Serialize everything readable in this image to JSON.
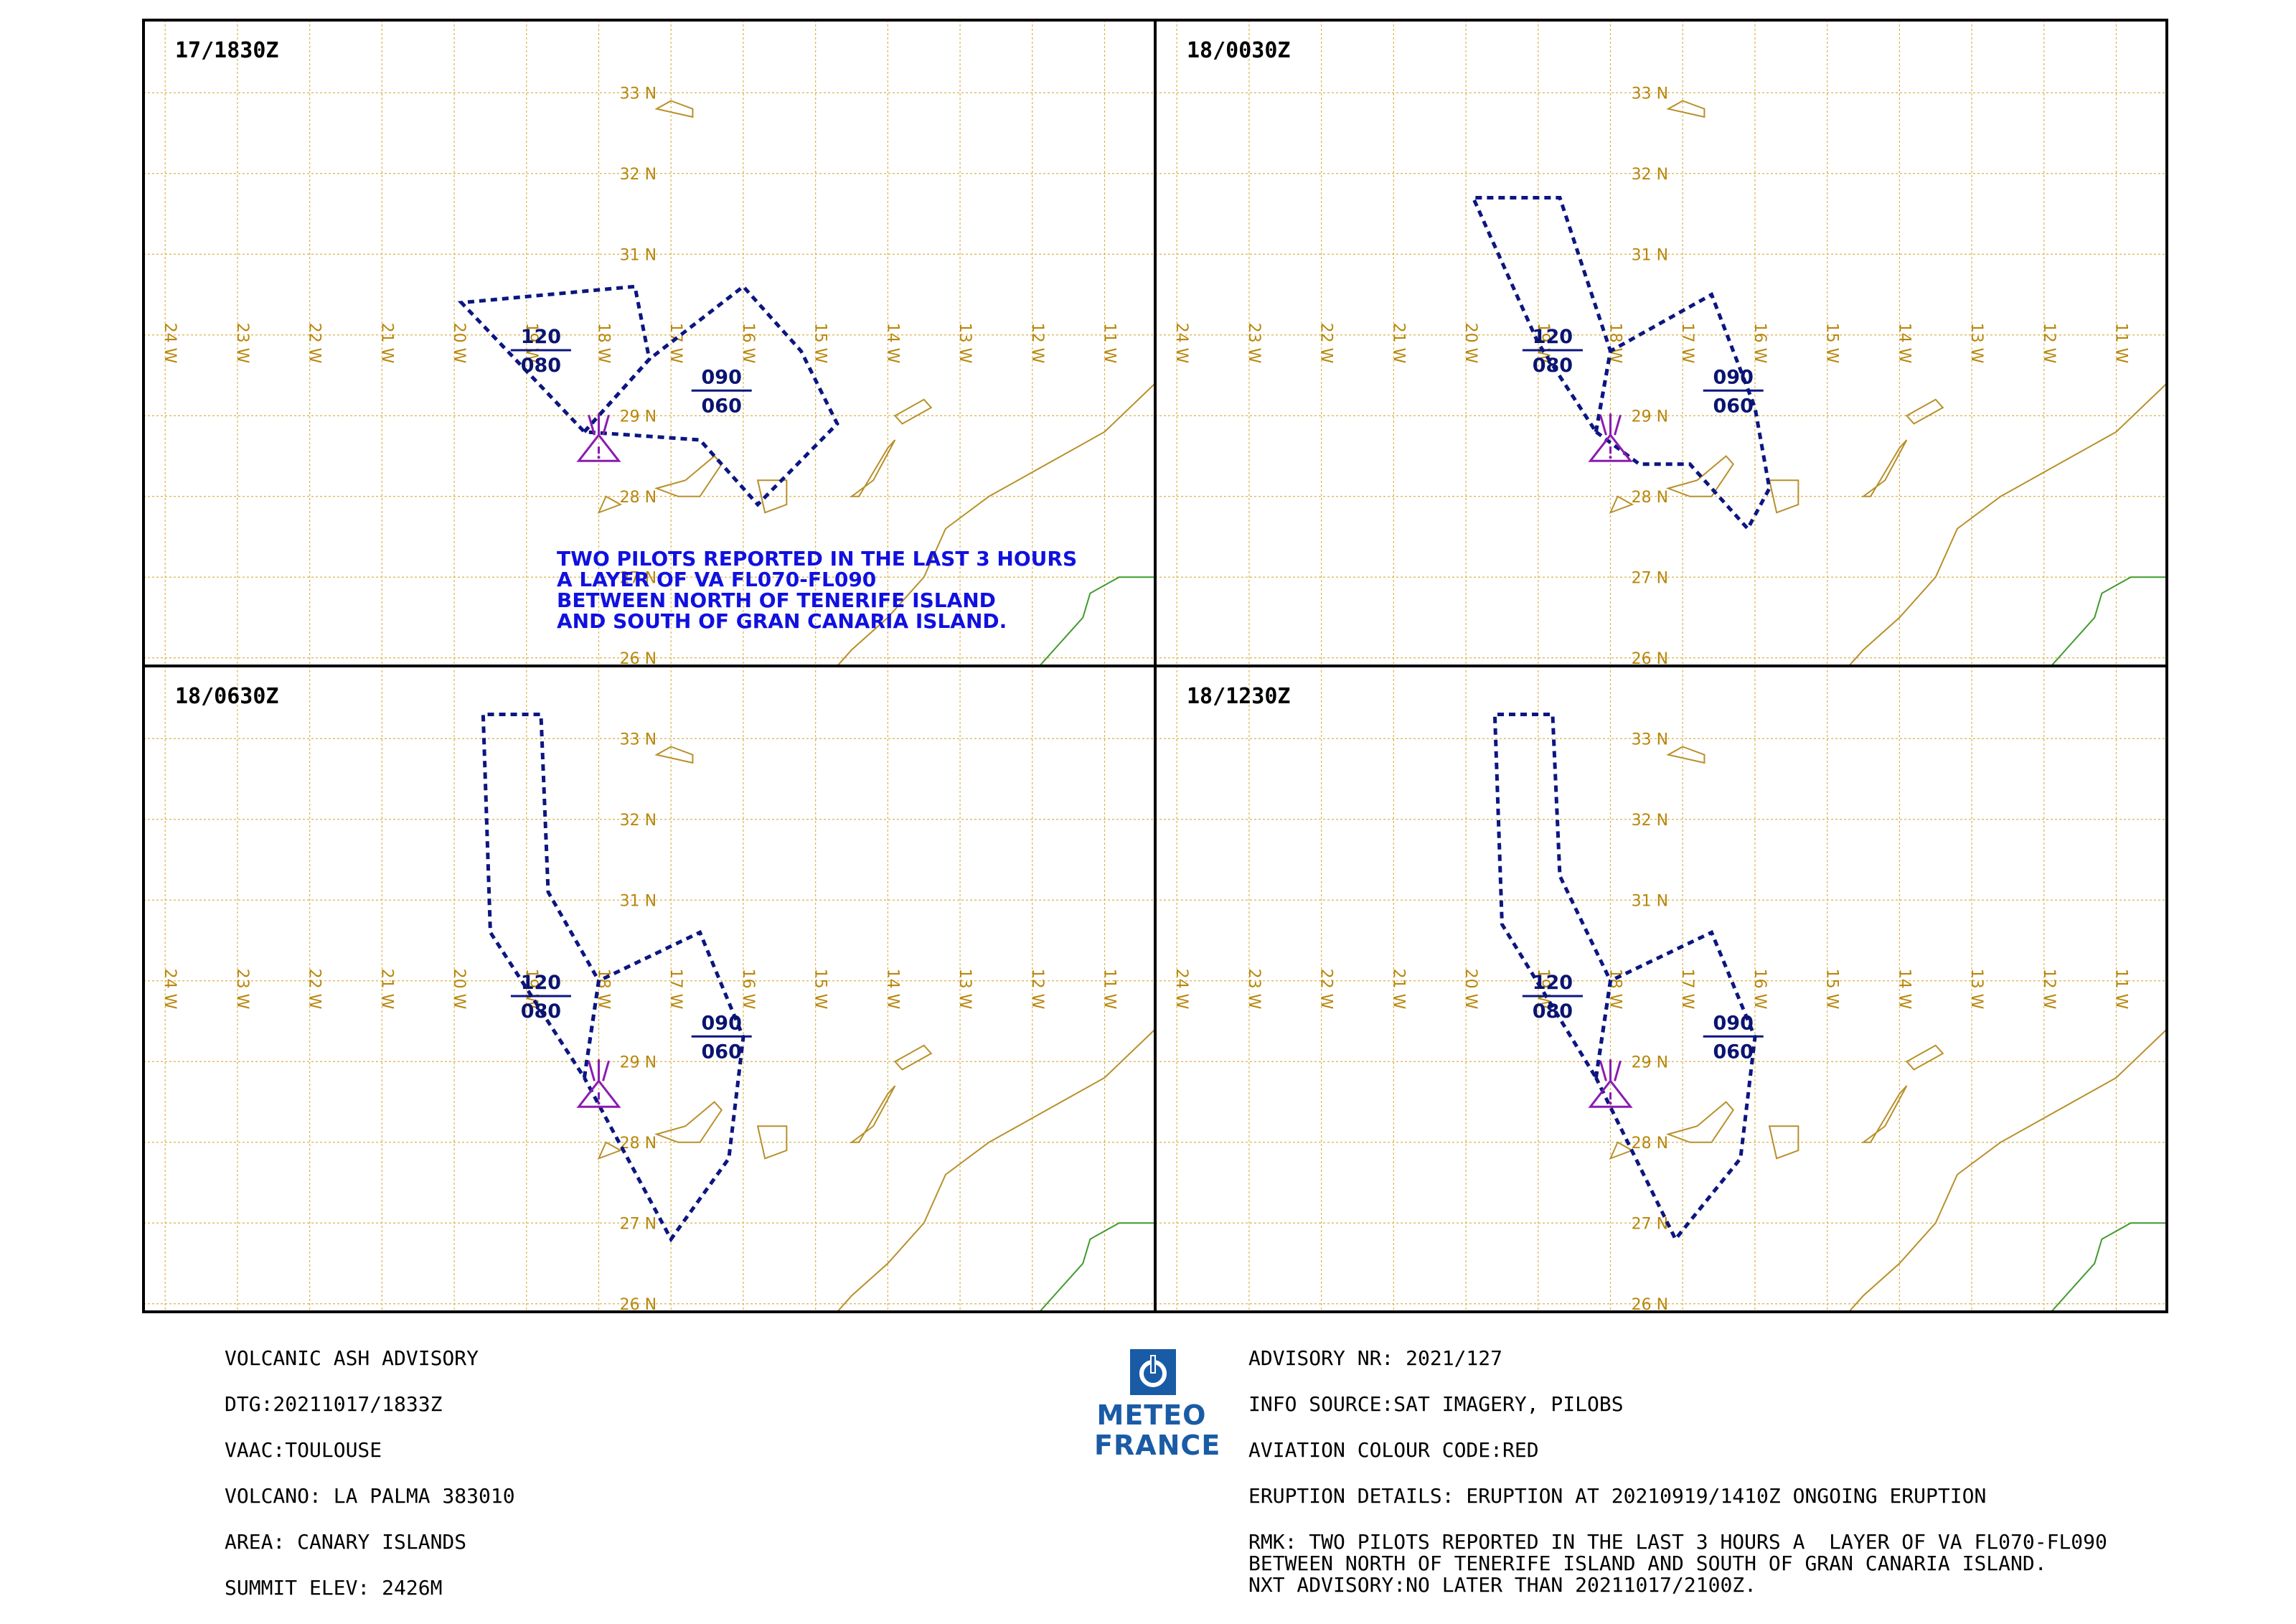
{
  "panels": [
    {
      "time": "17/1830Z",
      "remark": [
        "TWO PILOTS REPORTED IN THE LAST 3 HOURS",
        "A  LAYER OF VA FL070-FL090",
        " BETWEEN NORTH OF TENERIFE ISLAND",
        "AND SOUTH OF GRAN CANARIA ISLAND."
      ],
      "layers": [
        {
          "top": "120",
          "bottom": "080",
          "polygon": [
            [
              -18.2,
              28.8
            ],
            [
              -17.3,
              29.7
            ],
            [
              -17.5,
              30.6
            ],
            [
              -19.9,
              30.4
            ],
            [
              -18.2,
              28.8
            ]
          ]
        },
        {
          "top": "090",
          "bottom": "060",
          "polygon": [
            [
              -18.2,
              28.8
            ],
            [
              -17.3,
              29.7
            ],
            [
              -16.0,
              30.6
            ],
            [
              -15.2,
              29.8
            ],
            [
              -14.7,
              28.9
            ],
            [
              -15.8,
              27.9
            ],
            [
              -16.6,
              28.7
            ],
            [
              -18.2,
              28.8
            ]
          ]
        }
      ]
    },
    {
      "time": "18/0030Z",
      "remark": [],
      "layers": [
        {
          "top": "120",
          "bottom": "080",
          "polygon": [
            [
              -18.2,
              28.8
            ],
            [
              -18.0,
              29.8
            ],
            [
              -18.7,
              31.7
            ],
            [
              -19.9,
              31.7
            ],
            [
              -19.0,
              29.9
            ],
            [
              -18.2,
              28.8
            ]
          ]
        },
        {
          "top": "090",
          "bottom": "060",
          "polygon": [
            [
              -18.2,
              28.8
            ],
            [
              -18.0,
              29.8
            ],
            [
              -16.6,
              30.5
            ],
            [
              -16.0,
              29.1
            ],
            [
              -15.8,
              28.1
            ],
            [
              -16.1,
              27.6
            ],
            [
              -16.9,
              28.4
            ],
            [
              -17.6,
              28.4
            ],
            [
              -18.2,
              28.8
            ]
          ]
        }
      ]
    },
    {
      "time": "18/0630Z",
      "remark": [],
      "layers": [
        {
          "top": "120",
          "bottom": "080",
          "polygon": [
            [
              -18.2,
              28.8
            ],
            [
              -18.0,
              30.0
            ],
            [
              -18.7,
              31.1
            ],
            [
              -18.8,
              33.3
            ],
            [
              -19.6,
              33.3
            ],
            [
              -19.5,
              30.6
            ],
            [
              -18.2,
              28.8
            ]
          ]
        },
        {
          "top": "090",
          "bottom": "060",
          "polygon": [
            [
              -18.2,
              28.8
            ],
            [
              -18.0,
              30.0
            ],
            [
              -16.6,
              30.6
            ],
            [
              -16.0,
              29.3
            ],
            [
              -16.2,
              27.8
            ],
            [
              -17.0,
              26.8
            ],
            [
              -18.2,
              28.8
            ]
          ]
        }
      ]
    },
    {
      "time": "18/1230Z",
      "remark": [],
      "layers": [
        {
          "top": "120",
          "bottom": "080",
          "polygon": [
            [
              -18.2,
              28.8
            ],
            [
              -18.0,
              30.0
            ],
            [
              -18.7,
              31.3
            ],
            [
              -18.8,
              33.3
            ],
            [
              -19.6,
              33.3
            ],
            [
              -19.5,
              30.7
            ],
            [
              -18.2,
              28.8
            ]
          ]
        },
        {
          "top": "090",
          "bottom": "060",
          "polygon": [
            [
              -18.2,
              28.8
            ],
            [
              -18.0,
              30.0
            ],
            [
              -16.6,
              30.6
            ],
            [
              -16.0,
              29.3
            ],
            [
              -16.2,
              27.8
            ],
            [
              -17.1,
              26.8
            ],
            [
              -18.2,
              28.8
            ]
          ]
        }
      ]
    }
  ],
  "lat_labels": [
    "33 N",
    "32 N",
    "31 N",
    "29 N",
    "28 N",
    "27 N",
    "26 N"
  ],
  "lon_labels": [
    "24 W",
    "23 W",
    "22 W",
    "21 W",
    "20 W",
    "19 W",
    "18 W",
    "17 W",
    "16 W",
    "15 W",
    "14 W",
    "13 W",
    "12 W",
    "11 W"
  ],
  "volcano": {
    "lon": -18.0,
    "lat": 28.6
  },
  "advisory_left": {
    "title": "VOLCANIC ASH ADVISORY",
    "dtg": "DTG:20211017/1833Z",
    "vaac": "VAAC:TOULOUSE",
    "volcano": "VOLCANO: LA PALMA 383010",
    "area": "AREA: CANARY ISLANDS",
    "summit": "SUMMIT ELEV: 2426M"
  },
  "advisory_right": {
    "nr": "ADVISORY NR: 2021/127",
    "source": "INFO SOURCE:SAT IMAGERY, PILOBS",
    "colour": "AVIATION COLOUR CODE:RED",
    "eruption": "ERUPTION DETAILS: ERUPTION AT 20210919/1410Z ONGOING ERUPTION",
    "rmk1": "RMK: TWO PILOTS REPORTED IN THE LAST 3 HOURS A  LAYER OF VA FL070-FL090",
    "rmk2": "BETWEEN NORTH OF TENERIFE ISLAND AND SOUTH OF GRAN CANARIA ISLAND.",
    "nxt": "NXT ADVISORY:NO LATER THAN 20211017/2100Z."
  },
  "logo": {
    "line1": "METEO",
    "line2": "FRANCE"
  },
  "colors": {
    "grid": "#d9b24c",
    "coast": "#b8902a",
    "africa": "#b8902a",
    "green": "#3f9a2c",
    "ash": "#0b1680",
    "volcano": "#8a1bb0",
    "remark": "#1010e0"
  }
}
